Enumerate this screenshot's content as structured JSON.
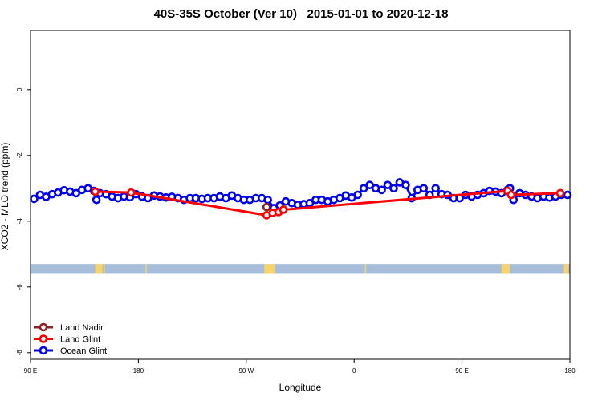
{
  "chart_data": {
    "type": "scatter",
    "title": "40S-35S October (Ver 10)   2015-01-01 to 2020-12-18",
    "xlabel": "Longitude",
    "ylabel": "XCO2 - MLO trend (ppm)",
    "xlim": [
      90,
      540
    ],
    "ylim": [
      -8.2,
      1.8
    ],
    "x_ticks": [
      {
        "value": 90,
        "label": "90 E"
      },
      {
        "value": 180,
        "label": "180"
      },
      {
        "value": 270,
        "label": "90 W"
      },
      {
        "value": 360,
        "label": "0"
      },
      {
        "value": 450,
        "label": "90 E"
      },
      {
        "value": 540,
        "label": "180"
      }
    ],
    "y_ticks": [
      {
        "value": 0,
        "label": "0"
      },
      {
        "value": -2,
        "label": "-2"
      },
      {
        "value": -4,
        "label": "-4"
      },
      {
        "value": -6,
        "label": "-6"
      },
      {
        "value": -8,
        "label": "-8"
      }
    ],
    "grid": false,
    "legend_position": "bottom-left",
    "land_band": {
      "y_top": -5.3,
      "y_bottom": -5.6,
      "ocean_color": "#a6bddb",
      "land_color": "#f7d36b"
    },
    "land_segments": [
      [
        144,
        150
      ],
      [
        151,
        152
      ],
      [
        186,
        187
      ],
      [
        285,
        294
      ],
      [
        369,
        370
      ],
      [
        483,
        490
      ],
      [
        535,
        539
      ]
    ],
    "series": [
      {
        "name": "Land Nadir",
        "color": "#8b2323",
        "x": [
          287
        ],
        "y": [
          -3.57
        ]
      },
      {
        "name": "Land Glint",
        "color": "#ff0000",
        "x": [
          144,
          174,
          287,
          292,
          297,
          301,
          488,
          491,
          532
        ],
        "y": [
          -3.1,
          -3.13,
          -3.82,
          -3.75,
          -3.72,
          -3.65,
          -3.08,
          -3.2,
          -3.15
        ]
      },
      {
        "name": "Ocean Glint",
        "color": "#0000ee",
        "x": [
          93,
          98,
          103,
          108,
          113,
          118,
          123,
          128,
          133,
          138,
          143,
          145,
          148,
          153,
          158,
          163,
          168,
          173,
          178,
          183,
          188,
          193,
          198,
          203,
          208,
          213,
          218,
          223,
          228,
          233,
          238,
          243,
          248,
          253,
          258,
          263,
          268,
          273,
          278,
          283,
          288,
          293,
          298,
          303,
          308,
          313,
          318,
          323,
          328,
          333,
          338,
          343,
          348,
          353,
          358,
          363,
          368,
          373,
          378,
          383,
          388,
          393,
          398,
          403,
          408,
          413,
          418,
          423,
          428,
          433,
          438,
          443,
          448,
          453,
          458,
          463,
          468,
          473,
          478,
          483,
          488,
          490,
          493,
          498,
          503,
          508,
          513,
          518,
          523,
          528,
          533,
          538
        ],
        "y": [
          -3.32,
          -3.2,
          -3.26,
          -3.18,
          -3.13,
          -3.06,
          -3.1,
          -3.15,
          -3.05,
          -3.0,
          -3.08,
          -3.35,
          -3.15,
          -3.18,
          -3.25,
          -3.3,
          -3.25,
          -3.27,
          -3.18,
          -3.25,
          -3.3,
          -3.22,
          -3.25,
          -3.28,
          -3.26,
          -3.3,
          -3.35,
          -3.3,
          -3.3,
          -3.32,
          -3.3,
          -3.3,
          -3.25,
          -3.3,
          -3.22,
          -3.3,
          -3.35,
          -3.35,
          -3.3,
          -3.3,
          -3.35,
          -3.6,
          -3.52,
          -3.4,
          -3.45,
          -3.5,
          -3.48,
          -3.45,
          -3.35,
          -3.35,
          -3.4,
          -3.35,
          -3.3,
          -3.22,
          -3.28,
          -3.2,
          -3.0,
          -2.9,
          -3.0,
          -3.05,
          -2.9,
          -3.0,
          -2.82,
          -2.9,
          -3.3,
          -3.05,
          -3.0,
          -3.2,
          -3.0,
          -3.18,
          -3.2,
          -3.3,
          -3.3,
          -3.2,
          -3.25,
          -3.2,
          -3.15,
          -3.08,
          -3.1,
          -3.15,
          -3.05,
          -3.0,
          -3.35,
          -3.15,
          -3.2,
          -3.25,
          -3.3,
          -3.25,
          -3.28,
          -3.25,
          -3.2,
          -3.2
        ]
      }
    ]
  }
}
